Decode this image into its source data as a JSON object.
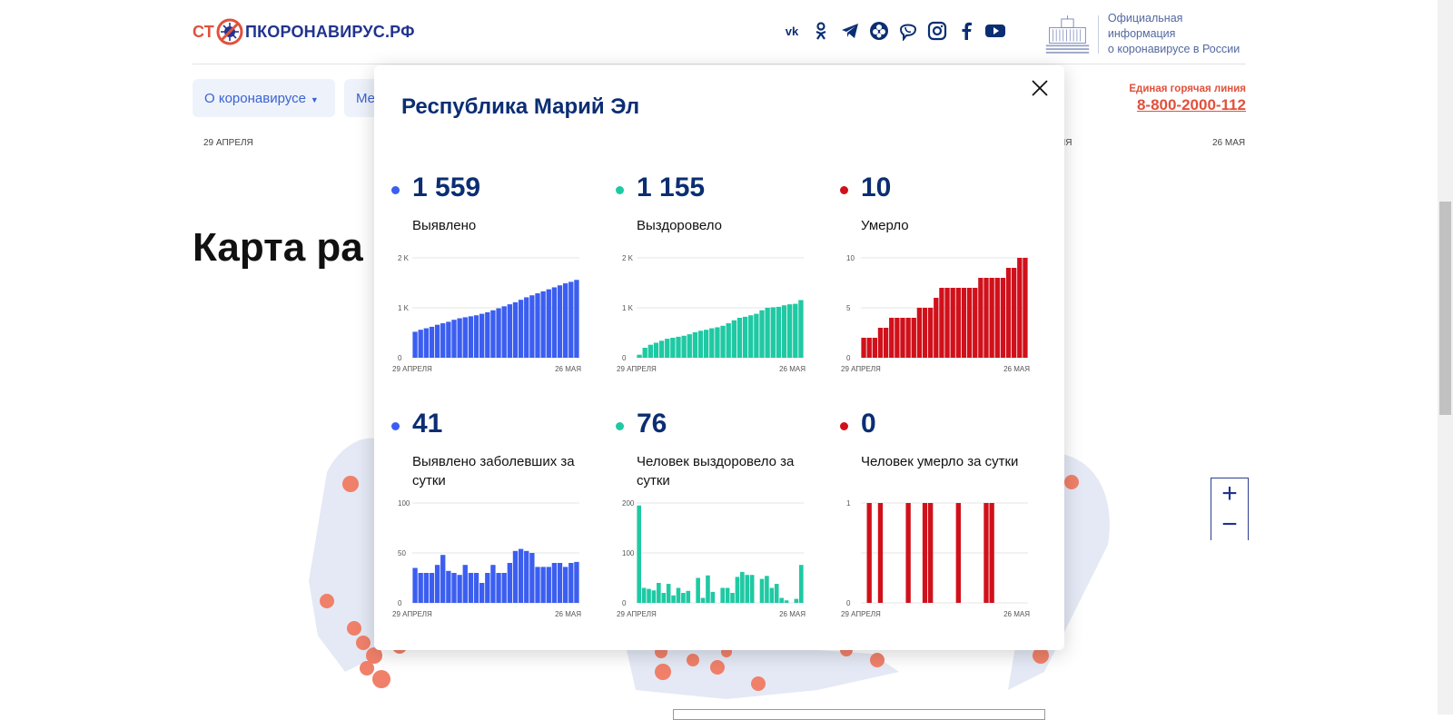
{
  "header": {
    "logo": {
      "part1": "СТ",
      "part2": "ПКОРОНАВИРУС.РФ"
    },
    "socials": [
      "vk-icon",
      "ok-icon",
      "telegram-icon",
      "viber-flower-icon",
      "viber-icon",
      "instagram-icon",
      "facebook-icon",
      "youtube-icon"
    ],
    "gov_line1": "Официальная информация",
    "gov_line2": "о коронавирусе в России"
  },
  "nav": {
    "item1": "О коронавирусе",
    "item2": "Ме",
    "hotline_label": "Единая горячая линия",
    "hotline_number": "8-800-2000-112"
  },
  "background": {
    "date_left": "29 АПРЕЛЯ",
    "date_mid": "ЯЯ",
    "date_right": "26 МАЯ",
    "map_title": "Карта ра"
  },
  "zoom": {
    "plus": "+",
    "minus": "−"
  },
  "modal": {
    "title": "Республика Марий Эл",
    "stats": [
      {
        "value": "1 559",
        "label": "Выявлено",
        "color": "#3b5ef0"
      },
      {
        "value": "1 155",
        "label": "Выздоровело",
        "color": "#1fc9a3"
      },
      {
        "value": "10",
        "label": "Умерло",
        "color": "#d0111b"
      },
      {
        "value": "41",
        "label": "Выявлено заболевших за сутки",
        "color": "#3b5ef0"
      },
      {
        "value": "76",
        "label": "Человек выздоровело за сутки",
        "color": "#1fc9a3"
      },
      {
        "value": "0",
        "label": "Человек умерло за сутки",
        "color": "#d0111b"
      }
    ]
  },
  "chart_data": [
    {
      "type": "bar",
      "series": [
        {
          "values": [
            520,
            560,
            590,
            620,
            660,
            690,
            720,
            760,
            790,
            810,
            830,
            850,
            880,
            910,
            950,
            990,
            1030,
            1070,
            1110,
            1160,
            1210,
            1250,
            1290,
            1330,
            1370,
            1410,
            1450,
            1490,
            1520,
            1559
          ]
        }
      ],
      "ylim": [
        0,
        2000
      ],
      "yticks": [
        "2 K",
        "1 K",
        "0"
      ],
      "xlabels": [
        "29 АПРЕЛЯ",
        "26 МАЯ"
      ],
      "color": "#3b5ef0"
    },
    {
      "type": "bar",
      "series": [
        {
          "values": [
            60,
            200,
            260,
            300,
            340,
            380,
            400,
            420,
            440,
            470,
            510,
            540,
            560,
            590,
            610,
            640,
            690,
            750,
            800,
            820,
            850,
            880,
            950,
            1000,
            1010,
            1020,
            1050,
            1070,
            1080,
            1155
          ]
        }
      ],
      "ylim": [
        0,
        2000
      ],
      "yticks": [
        "2 K",
        "1 K",
        "0"
      ],
      "xlabels": [
        "29 АПРЕЛЯ",
        "26 МАЯ"
      ],
      "color": "#1fc9a3"
    },
    {
      "type": "bar",
      "series": [
        {
          "values": [
            2,
            2,
            2,
            3,
            3,
            4,
            4,
            4,
            4,
            4,
            5,
            5,
            5,
            6,
            7,
            7,
            7,
            7,
            7,
            7,
            7,
            8,
            8,
            8,
            8,
            8,
            9,
            9,
            10,
            10
          ]
        }
      ],
      "ylim": [
        0,
        10
      ],
      "yticks": [
        "10",
        "5",
        "0"
      ],
      "xlabels": [
        "29 АПРЕЛЯ",
        "26 МАЯ"
      ],
      "color": "#d0111b"
    },
    {
      "type": "bar",
      "series": [
        {
          "values": [
            35,
            30,
            30,
            30,
            38,
            48,
            32,
            30,
            28,
            38,
            30,
            30,
            20,
            30,
            38,
            30,
            30,
            40,
            52,
            54,
            52,
            50,
            36,
            36,
            36,
            40,
            40,
            36,
            40,
            41
          ]
        }
      ],
      "ylim": [
        0,
        100
      ],
      "yticks": [
        "100",
        "50",
        "0"
      ],
      "xlabels": [
        "29 АПРЕЛЯ",
        "26 МАЯ"
      ],
      "color": "#3b5ef0"
    },
    {
      "type": "bar",
      "series": [
        {
          "values": [
            195,
            30,
            28,
            25,
            40,
            20,
            38,
            15,
            30,
            20,
            24,
            0,
            50,
            10,
            55,
            22,
            0,
            30,
            30,
            20,
            52,
            62,
            56,
            56,
            0,
            48,
            54,
            30,
            38,
            10,
            5,
            0,
            8,
            76
          ]
        }
      ],
      "ylim": [
        0,
        200
      ],
      "yticks": [
        "200",
        "100",
        "0"
      ],
      "xlabels": [
        "29 АПРЕЛЯ",
        "26 МАЯ"
      ],
      "color": "#1fc9a3"
    },
    {
      "type": "bar",
      "series": [
        {
          "values": [
            0,
            1,
            0,
            1,
            0,
            0,
            0,
            0,
            1,
            0,
            0,
            1,
            1,
            0,
            0,
            0,
            0,
            1,
            0,
            0,
            0,
            0,
            1,
            1,
            0,
            0,
            0,
            0,
            0,
            0
          ]
        }
      ],
      "ylim": [
        0,
        1
      ],
      "yticks": [
        "1",
        "",
        "0"
      ],
      "xlabels": [
        "29 АПРЕЛЯ",
        "26 МАЯ"
      ],
      "color": "#d0111b"
    }
  ]
}
